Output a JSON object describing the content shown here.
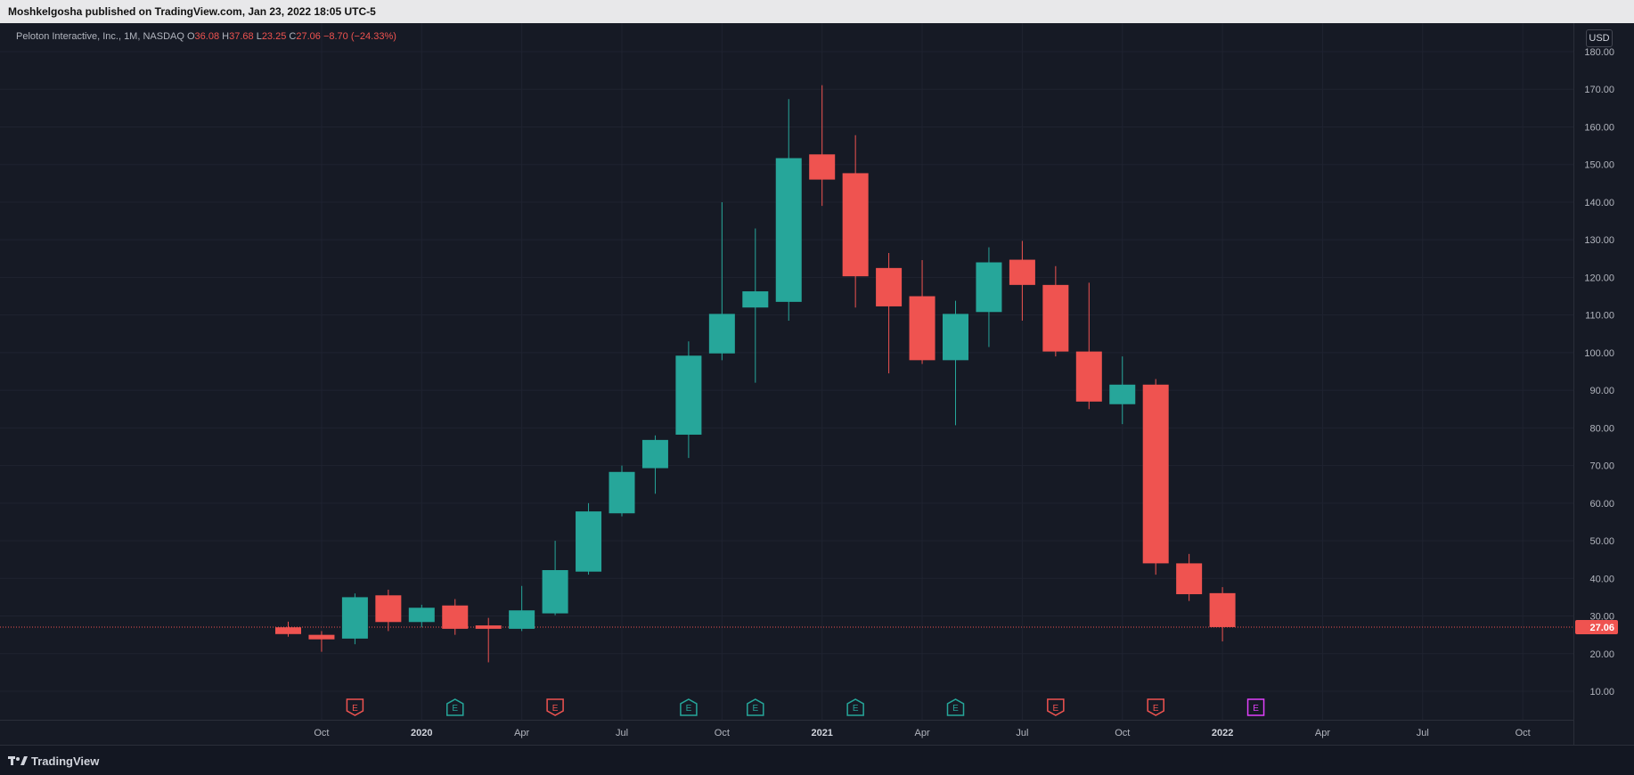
{
  "header": {
    "published_text": "Moshkelgosha published on TradingView.com, Jan 23, 2022 18:05 UTC-5"
  },
  "legend": {
    "symbol_text": "Peloton Interactive, Inc., 1M, NASDAQ",
    "o_key": "O",
    "o_val": "36.08",
    "h_key": "H",
    "h_val": "37.68",
    "l_key": "L",
    "l_val": "23.25",
    "c_key": "C",
    "c_val": "27.06",
    "change": "−8.70 (−24.33%)"
  },
  "price_axis": {
    "currency": "USD"
  },
  "footer": {
    "brand": "TradingView"
  },
  "colors": {
    "up": "#26a69a",
    "down": "#ef5350",
    "grid": "#1f2330",
    "background": "#161a25",
    "text": "#b2b5be",
    "earnings_future": "#e040fb"
  },
  "chart_data": {
    "type": "candlestick",
    "interval": "1M",
    "ylim": [
      0,
      185
    ],
    "y_ticks": [
      10,
      20,
      30,
      40,
      50,
      60,
      70,
      80,
      90,
      100,
      110,
      120,
      130,
      140,
      150,
      160,
      170,
      180
    ],
    "y_tick_labels": [
      "10.00",
      "20.00",
      "30.00",
      "40.00",
      "50.00",
      "60.00",
      "70.00",
      "80.00",
      "90.00",
      "100.00",
      "110.00",
      "120.00",
      "130.00",
      "140.00",
      "150.00",
      "160.00",
      "170.00",
      "180.00"
    ],
    "x_labels": [
      {
        "label": "Oct",
        "index": 1
      },
      {
        "label": "2020",
        "index": 4
      },
      {
        "label": "Apr",
        "index": 7
      },
      {
        "label": "Jul",
        "index": 10
      },
      {
        "label": "Oct",
        "index": 13
      },
      {
        "label": "2021",
        "index": 16
      },
      {
        "label": "Apr",
        "index": 19
      },
      {
        "label": "Jul",
        "index": 22
      },
      {
        "label": "Oct",
        "index": 25
      },
      {
        "label": "2022",
        "index": 28
      },
      {
        "label": "Apr",
        "index": 31
      },
      {
        "label": "Jul",
        "index": 34
      },
      {
        "label": "Oct",
        "index": 37
      }
    ],
    "candles": [
      {
        "date": "2019-09",
        "o": 27.0,
        "h": 28.5,
        "l": 24.5,
        "c": 25.2
      },
      {
        "date": "2019-10",
        "o": 25.0,
        "h": 26.0,
        "l": 20.5,
        "c": 23.8
      },
      {
        "date": "2019-11",
        "o": 24.0,
        "h": 36.0,
        "l": 22.5,
        "c": 35.0
      },
      {
        "date": "2019-12",
        "o": 35.5,
        "h": 37.0,
        "l": 26.0,
        "c": 28.4
      },
      {
        "date": "2020-01",
        "o": 28.4,
        "h": 33.0,
        "l": 27.0,
        "c": 32.2
      },
      {
        "date": "2020-02",
        "o": 32.8,
        "h": 34.5,
        "l": 25.0,
        "c": 26.6
      },
      {
        "date": "2020-03",
        "o": 27.5,
        "h": 29.5,
        "l": 17.7,
        "c": 26.6
      },
      {
        "date": "2020-04",
        "o": 26.6,
        "h": 38.0,
        "l": 26.0,
        "c": 31.5
      },
      {
        "date": "2020-05",
        "o": 30.7,
        "h": 50.0,
        "l": 30.2,
        "c": 42.2
      },
      {
        "date": "2020-06",
        "o": 41.8,
        "h": 60.0,
        "l": 41.0,
        "c": 57.8
      },
      {
        "date": "2020-07",
        "o": 57.3,
        "h": 70.0,
        "l": 56.5,
        "c": 68.3
      },
      {
        "date": "2020-08",
        "o": 69.3,
        "h": 78.0,
        "l": 62.5,
        "c": 76.8
      },
      {
        "date": "2020-09",
        "o": 78.2,
        "h": 103.0,
        "l": 72.0,
        "c": 99.2
      },
      {
        "date": "2020-10",
        "o": 99.8,
        "h": 140.0,
        "l": 98.0,
        "c": 110.3
      },
      {
        "date": "2020-11",
        "o": 112.0,
        "h": 133.0,
        "l": 92.0,
        "c": 116.3
      },
      {
        "date": "2020-12",
        "o": 113.5,
        "h": 167.4,
        "l": 108.5,
        "c": 151.7
      },
      {
        "date": "2021-01",
        "o": 152.7,
        "h": 171.1,
        "l": 139.0,
        "c": 146.0
      },
      {
        "date": "2021-02",
        "o": 147.7,
        "h": 157.8,
        "l": 112.0,
        "c": 120.3
      },
      {
        "date": "2021-03",
        "o": 122.5,
        "h": 126.5,
        "l": 94.5,
        "c": 112.3
      },
      {
        "date": "2021-04",
        "o": 115.0,
        "h": 124.6,
        "l": 97.0,
        "c": 98.0
      },
      {
        "date": "2021-05",
        "o": 98.0,
        "h": 113.8,
        "l": 80.7,
        "c": 110.3
      },
      {
        "date": "2021-06",
        "o": 110.8,
        "h": 128.0,
        "l": 101.5,
        "c": 124.0
      },
      {
        "date": "2021-07",
        "o": 124.7,
        "h": 129.7,
        "l": 108.5,
        "c": 118.0
      },
      {
        "date": "2021-08",
        "o": 118.0,
        "h": 123.0,
        "l": 99.0,
        "c": 100.3
      },
      {
        "date": "2021-09",
        "o": 100.3,
        "h": 118.6,
        "l": 85.0,
        "c": 87.0
      },
      {
        "date": "2021-10",
        "o": 86.3,
        "h": 99.0,
        "l": 81.0,
        "c": 91.5
      },
      {
        "date": "2021-11",
        "o": 91.5,
        "h": 93.0,
        "l": 41.0,
        "c": 44.0
      },
      {
        "date": "2021-12",
        "o": 44.0,
        "h": 46.5,
        "l": 34.0,
        "c": 35.8
      },
      {
        "date": "2022-01",
        "o": 36.08,
        "h": 37.68,
        "l": 23.25,
        "c": 27.06
      }
    ],
    "last_price": 27.06,
    "last_price_label": "27.06",
    "earnings": [
      {
        "index": 2,
        "kind": "down",
        "label": "E"
      },
      {
        "index": 5,
        "kind": "up",
        "label": "E"
      },
      {
        "index": 8,
        "kind": "down",
        "label": "E"
      },
      {
        "index": 12,
        "kind": "up",
        "label": "E"
      },
      {
        "index": 14,
        "kind": "up",
        "label": "E"
      },
      {
        "index": 17,
        "kind": "up",
        "label": "E"
      },
      {
        "index": 20,
        "kind": "up",
        "label": "E"
      },
      {
        "index": 23,
        "kind": "down",
        "label": "E"
      },
      {
        "index": 26,
        "kind": "down",
        "label": "E"
      },
      {
        "index": 29,
        "kind": "future",
        "label": "E"
      }
    ]
  }
}
